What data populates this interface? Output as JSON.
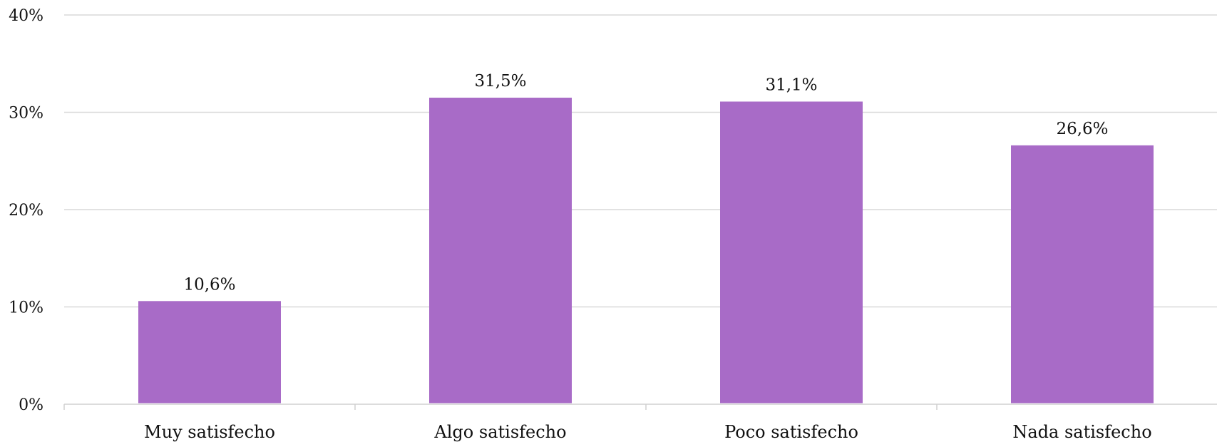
{
  "chart_data": {
    "type": "bar",
    "title": "",
    "xlabel": "",
    "ylabel": "",
    "categories": [
      "Muy satisfecho",
      "Algo satisfecho",
      "Poco satisfecho",
      "Nada satisfecho"
    ],
    "values": [
      10.6,
      31.5,
      31.1,
      26.6
    ],
    "data_labels": [
      "10,6%",
      "31,5%",
      "31,1%",
      "26,6%"
    ],
    "ylim": [
      0,
      40
    ],
    "yticks": [
      0,
      10,
      20,
      30,
      40
    ],
    "ytick_labels": [
      "0%",
      "10%",
      "20%",
      "30%",
      "40%"
    ],
    "grid": true,
    "legend": "none",
    "bar_color": "#a86bc7"
  }
}
